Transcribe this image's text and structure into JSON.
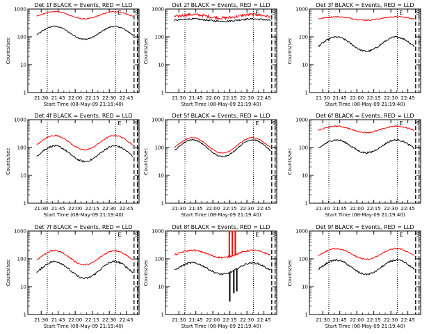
{
  "figure": {
    "ylabel": "Counts/sec",
    "xlabel": "Start Time (08-May-09 21:19:40)",
    "flags": [
      "E",
      "S"
    ]
  },
  "chart_data": [
    {
      "type": "line",
      "title": "Det 1f BLACK = Events, RED = LLD",
      "ylim": [
        1,
        1000
      ],
      "yscale": "log",
      "xticks": [
        "21:30",
        "21:45",
        "22:00",
        "22:15",
        "22:30",
        "22:45"
      ],
      "yticks": [
        "1",
        "10",
        "100",
        "1000"
      ],
      "series": [
        {
          "name": "Events",
          "color": "#000000",
          "base": 140,
          "amp": 1.7,
          "noise": 0.02,
          "spikes": []
        },
        {
          "name": "LLD",
          "color": "#ff0000",
          "base": 600,
          "amp": 1.35,
          "noise": 0.015,
          "spikes": []
        }
      ]
    },
    {
      "type": "line",
      "title": "Det 2f BLACK = Events, RED = LLD",
      "ylim": [
        1,
        1000
      ],
      "yscale": "log",
      "xticks": [
        "21:30",
        "21:45",
        "22:00",
        "22:15",
        "22:30",
        "22:45"
      ],
      "yticks": [
        "1",
        "10",
        "100",
        "1000"
      ],
      "series": [
        {
          "name": "Events",
          "color": "#000000",
          "base": 400,
          "amp": 1.1,
          "noise": 0.03,
          "spikes": []
        },
        {
          "name": "LLD",
          "color": "#ff0000",
          "base": 550,
          "amp": 1.15,
          "noise": 0.05,
          "spikes": []
        }
      ]
    },
    {
      "type": "line",
      "title": "Det 3f BLACK = Events, RED = LLD",
      "ylim": [
        1,
        1000
      ],
      "yscale": "log",
      "xticks": [
        "21:30",
        "21:45",
        "22:00",
        "22:15",
        "22:30",
        "22:45"
      ],
      "yticks": [
        "1",
        "10",
        "100",
        "1000"
      ],
      "series": [
        {
          "name": "Events",
          "color": "#000000",
          "base": 55,
          "amp": 1.8,
          "noise": 0.03,
          "spikes": []
        },
        {
          "name": "LLD",
          "color": "#ff0000",
          "base": 460,
          "amp": 1.15,
          "noise": 0.02,
          "spikes": []
        }
      ]
    },
    {
      "type": "line",
      "title": "Det 4f BLACK = Events, RED = LLD",
      "ylim": [
        1,
        1000
      ],
      "yscale": "log",
      "xticks": [
        "21:30",
        "21:45",
        "22:00",
        "22:15",
        "22:30",
        "22:45"
      ],
      "yticks": [
        "1",
        "10",
        "100",
        "1000"
      ],
      "series": [
        {
          "name": "Events",
          "color": "#000000",
          "base": 60,
          "amp": 1.9,
          "noise": 0.03,
          "spikes": []
        },
        {
          "name": "LLD",
          "color": "#ff0000",
          "base": 150,
          "amp": 1.8,
          "noise": 0.02,
          "spikes": []
        }
      ]
    },
    {
      "type": "line",
      "title": "Det 5f BLACK = Events, RED = LLD",
      "ylim": [
        1,
        1000
      ],
      "yscale": "log",
      "xticks": [
        "21:30",
        "21:45",
        "22:00",
        "22:15",
        "22:30",
        "22:45"
      ],
      "yticks": [
        "1",
        "10",
        "100",
        "1000"
      ],
      "series": [
        {
          "name": "Events",
          "color": "#000000",
          "base": 95,
          "amp": 2.0,
          "noise": 0.02,
          "spikes": []
        },
        {
          "name": "LLD",
          "color": "#ff0000",
          "base": 120,
          "amp": 1.9,
          "noise": 0.015,
          "spikes": []
        }
      ]
    },
    {
      "type": "line",
      "title": "Det 6f BLACK = Events, RED = LLD",
      "ylim": [
        1,
        1000
      ],
      "yscale": "log",
      "xticks": [
        "21:30",
        "21:45",
        "22:00",
        "22:15",
        "22:30",
        "22:45"
      ],
      "yticks": [
        "1",
        "10",
        "100",
        "1000"
      ],
      "series": [
        {
          "name": "Events",
          "color": "#000000",
          "base": 110,
          "amp": 1.7,
          "noise": 0.03,
          "spikes": []
        },
        {
          "name": "LLD",
          "color": "#ff0000",
          "base": 450,
          "amp": 1.3,
          "noise": 0.02,
          "spikes": []
        }
      ]
    },
    {
      "type": "line",
      "title": "Det 7f BLACK = Events, RED = LLD",
      "ylim": [
        1,
        1000
      ],
      "yscale": "log",
      "xticks": [
        "21:30",
        "21:45",
        "22:00",
        "22:15",
        "22:30",
        "22:45"
      ],
      "yticks": [
        "1",
        "10",
        "100",
        "1000"
      ],
      "series": [
        {
          "name": "Events",
          "color": "#000000",
          "base": 40,
          "amp": 2.0,
          "noise": 0.035,
          "spikes": []
        },
        {
          "name": "LLD",
          "color": "#ff0000",
          "base": 110,
          "amp": 1.8,
          "noise": 0.025,
          "spikes": []
        }
      ]
    },
    {
      "type": "line",
      "title": "Det 8f BLACK = Events, RED = LLD",
      "ylim": [
        1,
        1000
      ],
      "yscale": "log",
      "xticks": [
        "21:30",
        "21:45",
        "22:00",
        "22:15",
        "22:30",
        "22:45"
      ],
      "yticks": [
        "1",
        "10",
        "100",
        "1000"
      ],
      "series": [
        {
          "name": "Events",
          "color": "#000000",
          "base": 45,
          "amp": 1.6,
          "noise": 0.03,
          "spikes": [
            [
              0.55,
              3
            ],
            [
              0.59,
              6
            ],
            [
              0.62,
              7
            ]
          ]
        },
        {
          "name": "LLD",
          "color": "#ff0000",
          "base": 150,
          "amp": 1.35,
          "noise": 0.03,
          "spikes": [
            [
              0.545,
              1000
            ],
            [
              0.575,
              1000
            ],
            [
              0.605,
              1000
            ]
          ]
        }
      ]
    },
    {
      "type": "line",
      "title": "Det 9f BLACK = Events, RED = LLD",
      "ylim": [
        1,
        1000
      ],
      "yscale": "log",
      "xticks": [
        "21:30",
        "21:45",
        "22:00",
        "22:15",
        "22:30",
        "22:45"
      ],
      "yticks": [
        "1",
        "10",
        "100",
        "1000"
      ],
      "series": [
        {
          "name": "Events",
          "color": "#000000",
          "base": 50,
          "amp": 1.8,
          "noise": 0.03,
          "spikes": []
        },
        {
          "name": "LLD",
          "color": "#ff0000",
          "base": 150,
          "amp": 1.55,
          "noise": 0.02,
          "spikes": []
        }
      ]
    }
  ]
}
